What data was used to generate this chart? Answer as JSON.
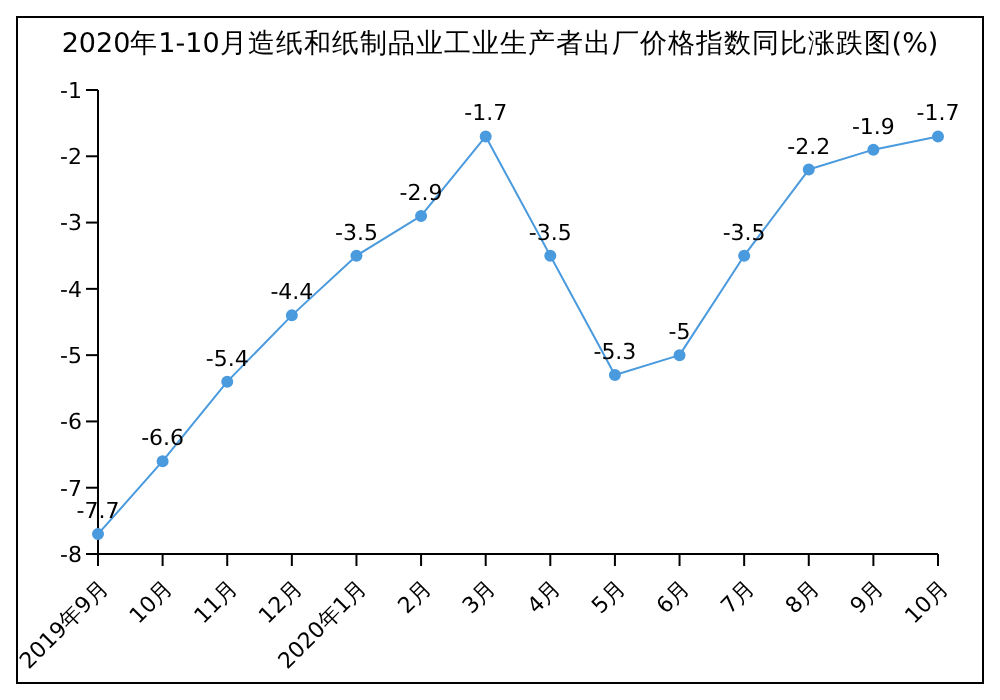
{
  "chart_data": {
    "type": "line",
    "title": "2020年1-10月造纸和纸制品业工业生产者出厂价格指数同比涨跌图(%)",
    "categories": [
      "2019年9月",
      "10月",
      "11月",
      "12月",
      "2020年1月",
      "2月",
      "3月",
      "4月",
      "5月",
      "6月",
      "7月",
      "8月",
      "9月",
      "10月"
    ],
    "series": [
      {
        "color": "#4a9ade",
        "values": [
          -7.7,
          -6.6,
          -5.4,
          -4.4,
          -3.5,
          -2.9,
          -1.7,
          -3.5,
          -5.3,
          -5,
          -3.5,
          -2.2,
          -1.9,
          -1.7
        ]
      }
    ],
    "ylim": [
      -8,
      -1
    ],
    "yticks": [
      -8,
      -7,
      -6,
      -5,
      -4,
      -3,
      -2,
      -1
    ],
    "grid": false,
    "legend": false,
    "marker": "circle",
    "data_labels": true
  }
}
